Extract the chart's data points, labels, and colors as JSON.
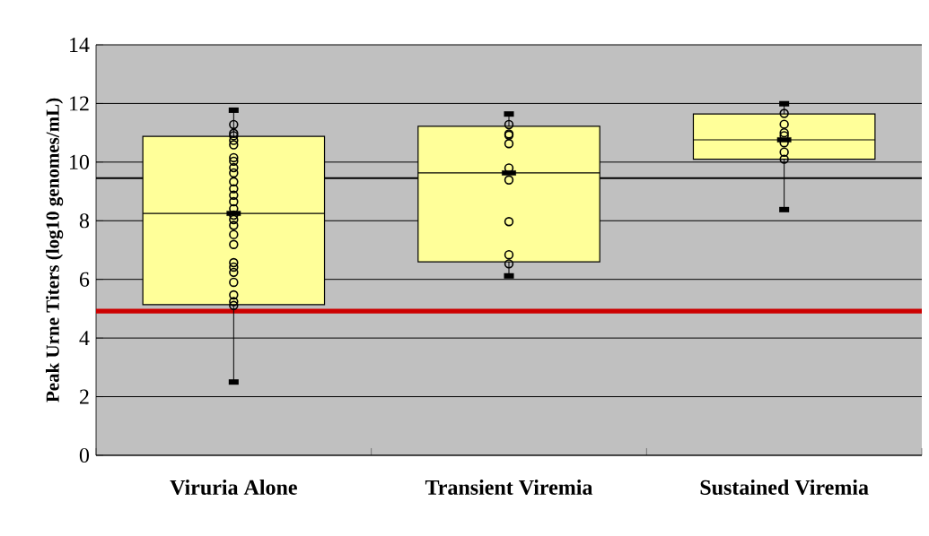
{
  "chart_data": {
    "type": "box",
    "ylabel": "Peak Urne Titers (log10 genomes/mL)",
    "categories": [
      "Viruria Alone",
      "Transient Viremia",
      "Sustained Viremia"
    ],
    "color": "#ffff99",
    "boxes": [
      {
        "low": 2.5,
        "q1": 5.14,
        "median": 8.25,
        "q3": 10.88,
        "high": 11.77
      },
      {
        "low": 6.12,
        "q1": 6.6,
        "median": 9.63,
        "q3": 11.22,
        "high": 11.64
      },
      {
        "low": 8.38,
        "q1": 10.1,
        "median": 10.76,
        "q3": 11.64,
        "high": 11.99
      }
    ],
    "series": [
      {
        "type": "scatter",
        "color": "#000000",
        "x": [
          "Viruria Alone",
          "Viruria Alone",
          "Viruria Alone",
          "Viruria Alone",
          "Viruria Alone",
          "Viruria Alone",
          "Viruria Alone",
          "Viruria Alone",
          "Viruria Alone",
          "Viruria Alone",
          "Viruria Alone",
          "Viruria Alone",
          "Viruria Alone",
          "Viruria Alone",
          "Viruria Alone",
          "Viruria Alone",
          "Viruria Alone",
          "Viruria Alone",
          "Viruria Alone",
          "Viruria Alone",
          "Viruria Alone",
          "Viruria Alone",
          "Viruria Alone",
          "Viruria Alone",
          "Viruria Alone",
          "Viruria Alone",
          "Transient Viremia",
          "Transient Viremia",
          "Transient Viremia",
          "Transient Viremia",
          "Transient Viremia",
          "Transient Viremia",
          "Transient Viremia",
          "Transient Viremia",
          "Transient Viremia",
          "Sustained Viremia",
          "Sustained Viremia",
          "Sustained Viremia",
          "Sustained Viremia",
          "Sustained Viremia",
          "Sustained Viremia",
          "Sustained Viremia"
        ],
        "values": [
          11.28,
          10.98,
          10.9,
          10.74,
          10.59,
          10.15,
          10.03,
          9.81,
          9.63,
          9.33,
          9.09,
          8.87,
          8.65,
          8.41,
          8.19,
          8.04,
          7.84,
          7.53,
          7.19,
          6.57,
          6.42,
          6.24,
          5.9,
          5.47,
          5.24,
          5.11,
          11.28,
          10.96,
          10.92,
          10.63,
          9.8,
          9.39,
          7.97,
          6.84,
          6.53,
          11.66,
          11.29,
          11.0,
          10.9,
          10.66,
          10.34,
          10.1
        ]
      },
      {
        "type": "scatter",
        "color": "#000000",
        "marker": "square",
        "x": [
          "Viruria Alone",
          "Transient Viremia",
          "Sustained Viremia"
        ],
        "values": [
          8.25,
          9.63,
          10.76
        ]
      }
    ],
    "marker": "circle",
    "ref_lines": [
      {
        "axis": "y",
        "value": 9.45,
        "color": "#000000"
      },
      {
        "axis": "y",
        "value": 4.92,
        "color": "#cc0000"
      }
    ],
    "ylim": [
      0,
      14
    ],
    "yticks": [
      0,
      2,
      4,
      6,
      8,
      10,
      12,
      14
    ],
    "grid": "y"
  }
}
